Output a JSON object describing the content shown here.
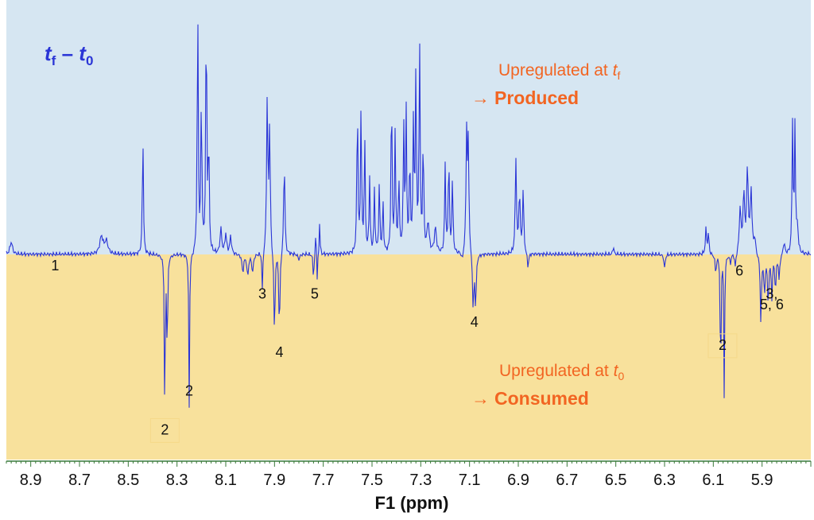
{
  "chart_data": {
    "type": "line",
    "title_main": "t",
    "title_sub_a": "f",
    "title_dash": " – ",
    "title_main_b": "t",
    "title_sub_b": "0",
    "xlabel": "F1 (ppm)",
    "x_reversed": true,
    "xlim": [
      9.0,
      5.7
    ],
    "ylim": [
      -1.0,
      1.0
    ],
    "x_ticks": [
      "8.9",
      "8.7",
      "8.5",
      "8.3",
      "8.1",
      "7.9",
      "7.7",
      "7.5",
      "7.3",
      "7.1",
      "6.9",
      "6.7",
      "6.5",
      "6.3",
      "6.1",
      "5.9"
    ],
    "regions": [
      {
        "name": "upregulated-tf",
        "color": "#d6e6f2"
      },
      {
        "name": "upregulated-t0",
        "color": "#f8e19c"
      }
    ],
    "upper_annotation": {
      "line1": "Upregulated at ",
      "var": "t",
      "sub": "f",
      "line2": "Produced"
    },
    "lower_annotation": {
      "line1": "Upregulated at ",
      "var": "t",
      "sub": "0",
      "line2": "Consumed"
    },
    "arrow": "→",
    "annotation_color": "#f26522",
    "line_color": "#2a35d6",
    "series": [
      {
        "name": "t_f - t_0",
        "peaks": [
          {
            "x": 8.98,
            "h": 0.05,
            "w": 0.006
          },
          {
            "x": 8.61,
            "h": 0.07,
            "w": 0.008
          },
          {
            "x": 8.59,
            "h": 0.05,
            "w": 0.008
          },
          {
            "x": 8.44,
            "h": 0.48,
            "w": 0.0025
          },
          {
            "x": 8.35,
            "h": -1.0,
            "w": 0.002
          },
          {
            "x": 8.34,
            "h": -0.6,
            "w": 0.002
          },
          {
            "x": 8.25,
            "h": -0.88,
            "w": 0.002
          },
          {
            "x": 8.215,
            "h": 1.0,
            "w": 0.0025
          },
          {
            "x": 8.2,
            "h": 0.62,
            "w": 0.0025
          },
          {
            "x": 8.18,
            "h": 0.98,
            "w": 0.0025
          },
          {
            "x": 8.17,
            "h": 0.45,
            "w": 0.0025
          },
          {
            "x": 8.12,
            "h": 0.1,
            "w": 0.004
          },
          {
            "x": 8.1,
            "h": 0.08,
            "w": 0.004
          },
          {
            "x": 8.08,
            "h": 0.07,
            "w": 0.004
          },
          {
            "x": 8.03,
            "h": -0.1,
            "w": 0.004
          },
          {
            "x": 8.01,
            "h": -0.12,
            "w": 0.004
          },
          {
            "x": 7.99,
            "h": -0.1,
            "w": 0.004
          },
          {
            "x": 7.95,
            "h": -0.22,
            "w": 0.002
          },
          {
            "x": 7.93,
            "h": 0.61,
            "w": 0.003
          },
          {
            "x": 7.92,
            "h": 0.5,
            "w": 0.003
          },
          {
            "x": 7.9,
            "h": -0.5,
            "w": 0.0025
          },
          {
            "x": 7.88,
            "h": -0.47,
            "w": 0.0025
          },
          {
            "x": 7.86,
            "h": 0.38,
            "w": 0.003
          },
          {
            "x": 7.8,
            "h": -0.03,
            "w": 0.004
          },
          {
            "x": 7.74,
            "h": -0.16,
            "w": 0.002
          },
          {
            "x": 7.725,
            "h": -0.16,
            "w": 0.002
          },
          {
            "x": 7.73,
            "h": 0.13,
            "w": 0.002
          },
          {
            "x": 7.715,
            "h": 0.13,
            "w": 0.002
          },
          {
            "x": 7.56,
            "h": 0.61,
            "w": 0.0025
          },
          {
            "x": 7.545,
            "h": 0.58,
            "w": 0.0025
          },
          {
            "x": 7.53,
            "h": 0.45,
            "w": 0.0025
          },
          {
            "x": 7.51,
            "h": 0.3,
            "w": 0.0025
          },
          {
            "x": 7.49,
            "h": 0.25,
            "w": 0.0025
          },
          {
            "x": 7.47,
            "h": 0.28,
            "w": 0.0025
          },
          {
            "x": 7.455,
            "h": 0.2,
            "w": 0.0025
          },
          {
            "x": 7.42,
            "h": 0.66,
            "w": 0.0025
          },
          {
            "x": 7.405,
            "h": 0.48,
            "w": 0.0025
          },
          {
            "x": 7.39,
            "h": 0.3,
            "w": 0.0025
          },
          {
            "x": 7.37,
            "h": 0.5,
            "w": 0.0025
          },
          {
            "x": 7.36,
            "h": 0.55,
            "w": 0.0025
          },
          {
            "x": 7.345,
            "h": 0.38,
            "w": 0.0025
          },
          {
            "x": 7.33,
            "h": 0.52,
            "w": 0.0025
          },
          {
            "x": 7.32,
            "h": 0.72,
            "w": 0.0025
          },
          {
            "x": 7.305,
            "h": 0.85,
            "w": 0.0025
          },
          {
            "x": 7.29,
            "h": 0.45,
            "w": 0.0025
          },
          {
            "x": 7.27,
            "h": 0.12,
            "w": 0.005
          },
          {
            "x": 7.24,
            "h": 0.1,
            "w": 0.005
          },
          {
            "x": 7.2,
            "h": 0.35,
            "w": 0.0025
          },
          {
            "x": 7.185,
            "h": 0.4,
            "w": 0.0025
          },
          {
            "x": 7.17,
            "h": 0.3,
            "w": 0.0025
          },
          {
            "x": 7.13,
            "h": -0.04,
            "w": 0.004
          },
          {
            "x": 7.112,
            "h": 0.47,
            "w": 0.003
          },
          {
            "x": 7.105,
            "h": 0.42,
            "w": 0.003
          },
          {
            "x": 7.085,
            "h": -0.32,
            "w": 0.003
          },
          {
            "x": 7.075,
            "h": -0.3,
            "w": 0.003
          },
          {
            "x": 6.91,
            "h": 0.38,
            "w": 0.003
          },
          {
            "x": 6.895,
            "h": 0.25,
            "w": 0.003
          },
          {
            "x": 6.88,
            "h": 0.25,
            "w": 0.003
          },
          {
            "x": 6.86,
            "h": -0.08,
            "w": 0.003
          },
          {
            "x": 6.51,
            "h": 0.04,
            "w": 0.002
          },
          {
            "x": 6.3,
            "h": -0.08,
            "w": 0.003
          },
          {
            "x": 6.13,
            "h": 0.1,
            "w": 0.003
          },
          {
            "x": 6.12,
            "h": 0.08,
            "w": 0.003
          },
          {
            "x": 6.09,
            "h": -0.1,
            "w": 0.003
          },
          {
            "x": 6.07,
            "h": -0.85,
            "w": 0.0018
          },
          {
            "x": 6.055,
            "h": -0.85,
            "w": 0.0018
          },
          {
            "x": 6.03,
            "h": -0.05,
            "w": 0.003
          },
          {
            "x": 6.01,
            "h": -0.08,
            "w": 0.003
          },
          {
            "x": 5.99,
            "h": 0.18,
            "w": 0.004
          },
          {
            "x": 5.975,
            "h": 0.23,
            "w": 0.004
          },
          {
            "x": 5.96,
            "h": 0.33,
            "w": 0.004
          },
          {
            "x": 5.945,
            "h": 0.25,
            "w": 0.004
          },
          {
            "x": 5.93,
            "h": 0.06,
            "w": 0.004
          },
          {
            "x": 5.905,
            "h": -0.38,
            "w": 0.003
          },
          {
            "x": 5.89,
            "h": -0.22,
            "w": 0.003
          },
          {
            "x": 5.875,
            "h": -0.28,
            "w": 0.003
          },
          {
            "x": 5.86,
            "h": -0.24,
            "w": 0.003
          },
          {
            "x": 5.845,
            "h": -0.2,
            "w": 0.003
          },
          {
            "x": 5.83,
            "h": -0.14,
            "w": 0.003
          },
          {
            "x": 5.81,
            "h": 0.05,
            "w": 0.004
          },
          {
            "x": 5.775,
            "h": 0.52,
            "w": 0.0025
          },
          {
            "x": 5.765,
            "h": 0.5,
            "w": 0.0025
          },
          {
            "x": 5.755,
            "h": 0.1,
            "w": 0.004
          }
        ]
      }
    ],
    "annotations": [
      {
        "text": "1",
        "x": 8.8,
        "y": -0.09
      },
      {
        "text": "2",
        "x": 8.35,
        "y": -1.02,
        "boxed": true
      },
      {
        "text": "2",
        "x": 8.25,
        "y": -0.8
      },
      {
        "text": "3",
        "x": 7.95,
        "y": -0.25
      },
      {
        "text": "4",
        "x": 7.88,
        "y": -0.58
      },
      {
        "text": "5",
        "x": 7.735,
        "y": -0.25
      },
      {
        "text": "4",
        "x": 7.08,
        "y": -0.41
      },
      {
        "text": "2",
        "x": 6.062,
        "y": -0.54,
        "boxed": true
      },
      {
        "text": "6",
        "x": 5.993,
        "y": -0.12
      },
      {
        "text": "3,",
        "x": 5.86,
        "y": -0.25
      },
      {
        "text": "5, 6",
        "x": 5.86,
        "y": -0.31
      }
    ]
  }
}
